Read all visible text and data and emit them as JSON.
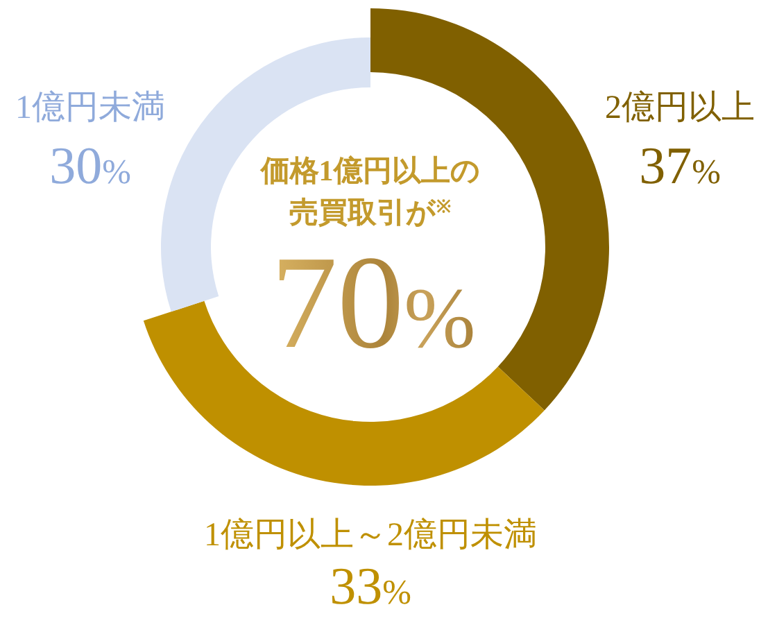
{
  "chart_data": {
    "type": "donut",
    "categories": [
      "2億円以上",
      "1億円以上～2億円未満",
      "1億円未満"
    ],
    "values": [
      37,
      33,
      30
    ],
    "colors": [
      "#806000",
      "#bf9000",
      "#dae3f3"
    ],
    "value_labels": [
      "37%",
      "33%",
      "30%"
    ],
    "annotations": [
      "価格1億円以上の",
      "売買取引が$^{※}$",
      "70%"
    ]
  }
}
